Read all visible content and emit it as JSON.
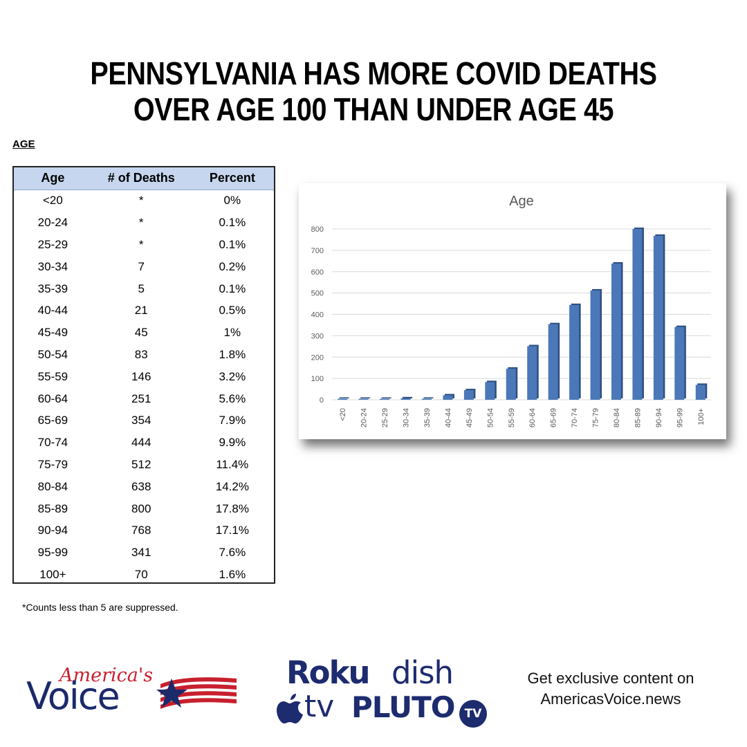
{
  "headline": {
    "line1": "PENNSYLVANIA HAS MORE COVID DEATHS",
    "line2": "OVER AGE 100 THAN UNDER AGE 45"
  },
  "section_label": "AGE",
  "table": {
    "headers": [
      "Age",
      "# of Deaths",
      "Percent"
    ],
    "rows": [
      [
        "<20",
        "*",
        "0%"
      ],
      [
        "20-24",
        "*",
        "0.1%"
      ],
      [
        "25-29",
        "*",
        "0.1%"
      ],
      [
        "30-34",
        "7",
        "0.2%"
      ],
      [
        "35-39",
        "5",
        "0.1%"
      ],
      [
        "40-44",
        "21",
        "0.5%"
      ],
      [
        "45-49",
        "45",
        "1%"
      ],
      [
        "50-54",
        "83",
        "1.8%"
      ],
      [
        "55-59",
        "146",
        "3.2%"
      ],
      [
        "60-64",
        "251",
        "5.6%"
      ],
      [
        "65-69",
        "354",
        "7.9%"
      ],
      [
        "70-74",
        "444",
        "9.9%"
      ],
      [
        "75-79",
        "512",
        "11.4%"
      ],
      [
        "80-84",
        "638",
        "14.2%"
      ],
      [
        "85-89",
        "800",
        "17.8%"
      ],
      [
        "90-94",
        "768",
        "17.1%"
      ],
      [
        "95-99",
        "341",
        "7.6%"
      ],
      [
        "100+",
        "70",
        "1.6%"
      ]
    ]
  },
  "footnote": "*Counts less than 5 are suppressed.",
  "chart_data": {
    "type": "bar",
    "title": "Age",
    "categories": [
      "<20",
      "20-24",
      "25-29",
      "30-34",
      "35-39",
      "40-44",
      "45-49",
      "50-54",
      "55-59",
      "60-64",
      "65-69",
      "70-74",
      "75-79",
      "80-84",
      "85-89",
      "90-94",
      "95-99",
      "100+"
    ],
    "values": [
      2,
      3,
      3,
      7,
      5,
      21,
      45,
      83,
      146,
      251,
      354,
      444,
      512,
      638,
      800,
      768,
      341,
      70
    ],
    "ylim": [
      0,
      800
    ],
    "yticks": [
      0,
      100,
      200,
      300,
      400,
      500,
      600,
      700,
      800
    ],
    "grid": true,
    "bar_color": "#4a78b8"
  },
  "branding": {
    "script": "America's",
    "main": "Voice",
    "colors": {
      "red": "#c8202e",
      "navy": "#1b2a6b"
    }
  },
  "platforms": {
    "roku": "Roku",
    "dish": "dish",
    "appletv": "tv",
    "pluto": "PLUTO",
    "pluto_badge": "TV"
  },
  "cta": {
    "line1": "Get exclusive content on",
    "line2": "AmericasVoice.news"
  }
}
